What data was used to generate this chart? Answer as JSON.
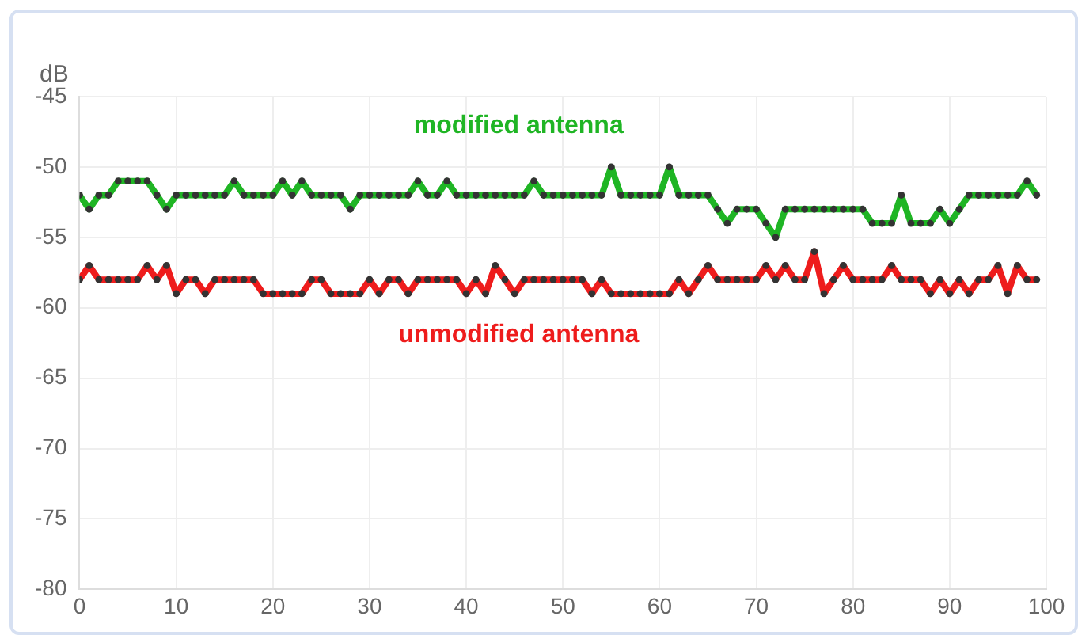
{
  "chart_data": {
    "type": "line",
    "ylabel": "dB",
    "x": [
      0,
      1,
      2,
      3,
      4,
      5,
      6,
      7,
      8,
      9,
      10,
      11,
      12,
      13,
      14,
      15,
      16,
      17,
      18,
      19,
      20,
      21,
      22,
      23,
      24,
      25,
      26,
      27,
      28,
      29,
      30,
      31,
      32,
      33,
      34,
      35,
      36,
      37,
      38,
      39,
      40,
      41,
      42,
      43,
      44,
      45,
      46,
      47,
      48,
      49,
      50,
      51,
      52,
      53,
      54,
      55,
      56,
      57,
      58,
      59,
      60,
      61,
      62,
      63,
      64,
      65,
      66,
      67,
      68,
      69,
      70,
      71,
      72,
      73,
      74,
      75,
      76,
      77,
      78,
      79,
      80,
      81,
      82,
      83,
      84,
      85,
      86,
      87,
      88,
      89,
      90,
      91,
      92,
      93,
      94,
      95,
      96,
      97,
      98,
      99
    ],
    "series": [
      {
        "name": "modified antenna",
        "color": "#1fb524",
        "values": [
          -52,
          -53,
          -52,
          -52,
          -51,
          -51,
          -51,
          -51,
          -52,
          -53,
          -52,
          -52,
          -52,
          -52,
          -52,
          -52,
          -51,
          -52,
          -52,
          -52,
          -52,
          -51,
          -52,
          -51,
          -52,
          -52,
          -52,
          -52,
          -53,
          -52,
          -52,
          -52,
          -52,
          -52,
          -52,
          -51,
          -52,
          -52,
          -51,
          -52,
          -52,
          -52,
          -52,
          -52,
          -52,
          -52,
          -52,
          -51,
          -52,
          -52,
          -52,
          -52,
          -52,
          -52,
          -52,
          -50,
          -52,
          -52,
          -52,
          -52,
          -52,
          -50,
          -52,
          -52,
          -52,
          -52,
          -53,
          -54,
          -53,
          -53,
          -53,
          -54,
          -55,
          -53,
          -53,
          -53,
          -53,
          -53,
          -53,
          -53,
          -53,
          -53,
          -54,
          -54,
          -54,
          -52,
          -54,
          -54,
          -54,
          -53,
          -54,
          -53,
          -52,
          -52,
          -52,
          -52,
          -52,
          -52,
          -51,
          -52
        ]
      },
      {
        "name": "unmodified antenna",
        "color": "#ee1c1c",
        "values": [
          -58,
          -57,
          -58,
          -58,
          -58,
          -58,
          -58,
          -57,
          -58,
          -57,
          -59,
          -58,
          -58,
          -59,
          -58,
          -58,
          -58,
          -58,
          -58,
          -59,
          -59,
          -59,
          -59,
          -59,
          -58,
          -58,
          -59,
          -59,
          -59,
          -59,
          -58,
          -59,
          -58,
          -58,
          -59,
          -58,
          -58,
          -58,
          -58,
          -58,
          -59,
          -58,
          -59,
          -57,
          -58,
          -59,
          -58,
          -58,
          -58,
          -58,
          -58,
          -58,
          -58,
          -59,
          -58,
          -59,
          -59,
          -59,
          -59,
          -59,
          -59,
          -59,
          -58,
          -59,
          -58,
          -57,
          -58,
          -58,
          -58,
          -58,
          -58,
          -57,
          -58,
          -57,
          -58,
          -58,
          -56,
          -59,
          -58,
          -57,
          -58,
          -58,
          -58,
          -58,
          -57,
          -58,
          -58,
          -58,
          -59,
          -58,
          -59,
          -58,
          -59,
          -58,
          -58,
          -57,
          -59,
          -57,
          -58,
          -58
        ]
      }
    ],
    "xlim": [
      0,
      100
    ],
    "xticks": [
      0,
      10,
      20,
      30,
      40,
      50,
      60,
      70,
      80,
      90,
      100
    ],
    "ylim": [
      -80,
      -45
    ],
    "yticks": [
      -80,
      -75,
      -70,
      -65,
      -60,
      -55,
      -50,
      -45
    ],
    "grid": true,
    "legend": false,
    "marker": "circle",
    "line_style": "solid"
  }
}
